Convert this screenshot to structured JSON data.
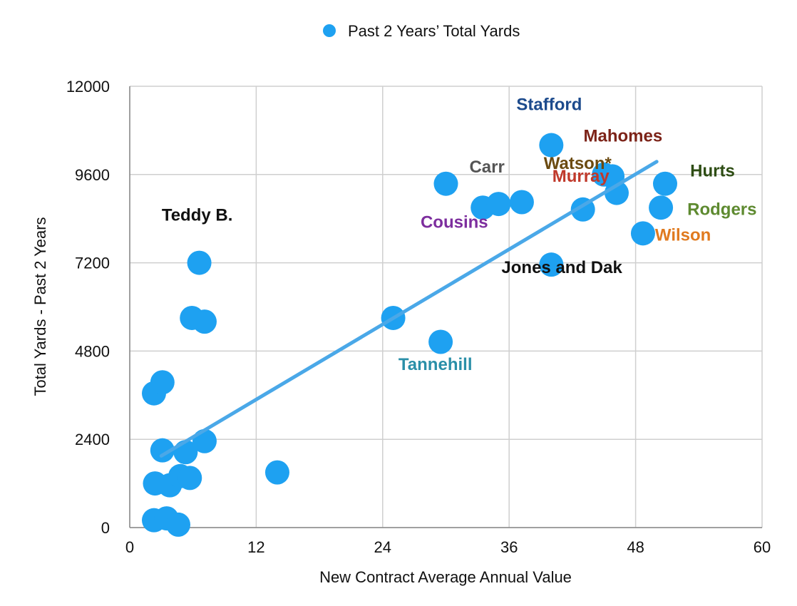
{
  "chart_data": {
    "type": "scatter",
    "title": "",
    "xlabel": "New Contract Average Annual Value",
    "ylabel": "Total Yards - Past 2 Years",
    "xlim": [
      0,
      60
    ],
    "ylim": [
      0,
      12000
    ],
    "x_ticks": [
      "0",
      "12",
      "24",
      "36",
      "48",
      "60"
    ],
    "y_ticks": [
      "0",
      "2400",
      "4800",
      "7200",
      "9600",
      "12000"
    ],
    "grid": true,
    "legend": {
      "position": "top-center",
      "entries": [
        "Past 2 Years’ Total Yards"
      ]
    },
    "series": [
      {
        "name": "Past 2 Years’ Total Yards",
        "color": "#1ea1f1",
        "points": [
          [
            2.3,
            200
          ],
          [
            3.5,
            250
          ],
          [
            4.6,
            80
          ],
          [
            2.4,
            1200
          ],
          [
            3.8,
            1150
          ],
          [
            4.8,
            1400
          ],
          [
            5.7,
            1350
          ],
          [
            3.1,
            2100
          ],
          [
            5.3,
            2050
          ],
          [
            7.1,
            2350
          ],
          [
            14.0,
            1500
          ],
          [
            2.3,
            3650
          ],
          [
            3.1,
            3950
          ],
          [
            5.9,
            5700
          ],
          [
            7.1,
            5600
          ],
          [
            6.6,
            7200
          ],
          [
            25.0,
            5700
          ],
          [
            29.5,
            5050
          ],
          [
            30.0,
            9350
          ],
          [
            33.5,
            8700
          ],
          [
            35.0,
            8800
          ],
          [
            37.2,
            8850
          ],
          [
            40.0,
            10400
          ],
          [
            40.0,
            7150
          ],
          [
            43.0,
            8650
          ],
          [
            45.0,
            9600
          ],
          [
            45.8,
            9550
          ],
          [
            46.2,
            9100
          ],
          [
            48.7,
            8000
          ],
          [
            50.4,
            8700
          ],
          [
            50.8,
            9350
          ]
        ]
      }
    ],
    "trendline": {
      "color": "#4aa8e8",
      "from": [
        3.0,
        1950
      ],
      "to": [
        50.0,
        9950
      ]
    },
    "annotations": [
      {
        "text": "Teddy B.",
        "x": 6.4,
        "y": 8350,
        "color": "#111111",
        "size": 24
      },
      {
        "text": "Stafford",
        "x": 39.8,
        "y": 11350,
        "color": "#1c4a8c",
        "size": 24
      },
      {
        "text": "Mahomes",
        "x": 46.8,
        "y": 10500,
        "color": "#7c2318",
        "size": 24
      },
      {
        "text": "Carr",
        "x": 33.9,
        "y": 9650,
        "color": "#555555",
        "size": 24
      },
      {
        "text": "Watson*",
        "x": 42.5,
        "y": 9750,
        "color": "#6b4a10",
        "size": 24
      },
      {
        "text": "Murray",
        "x": 42.8,
        "y": 9400,
        "color": "#c0392b",
        "size": 24
      },
      {
        "text": "Hurts",
        "x": 55.3,
        "y": 9550,
        "color": "#2e4d14",
        "size": 32
      },
      {
        "text": "Rodgers",
        "x": 56.2,
        "y": 8500,
        "color": "#5e8a30",
        "size": 24
      },
      {
        "text": "Cousins",
        "x": 30.8,
        "y": 8150,
        "color": "#7d2e9e",
        "size": 24
      },
      {
        "text": "Wilson",
        "x": 52.5,
        "y": 7800,
        "color": "#e07a1f",
        "size": 24
      },
      {
        "text": "Jones and Dak",
        "x": 41.0,
        "y": 6920,
        "color": "#111111",
        "size": 24
      },
      {
        "text": "Tannehill",
        "x": 29.0,
        "y": 4280,
        "color": "#2a8fa8",
        "size": 24
      }
    ]
  }
}
